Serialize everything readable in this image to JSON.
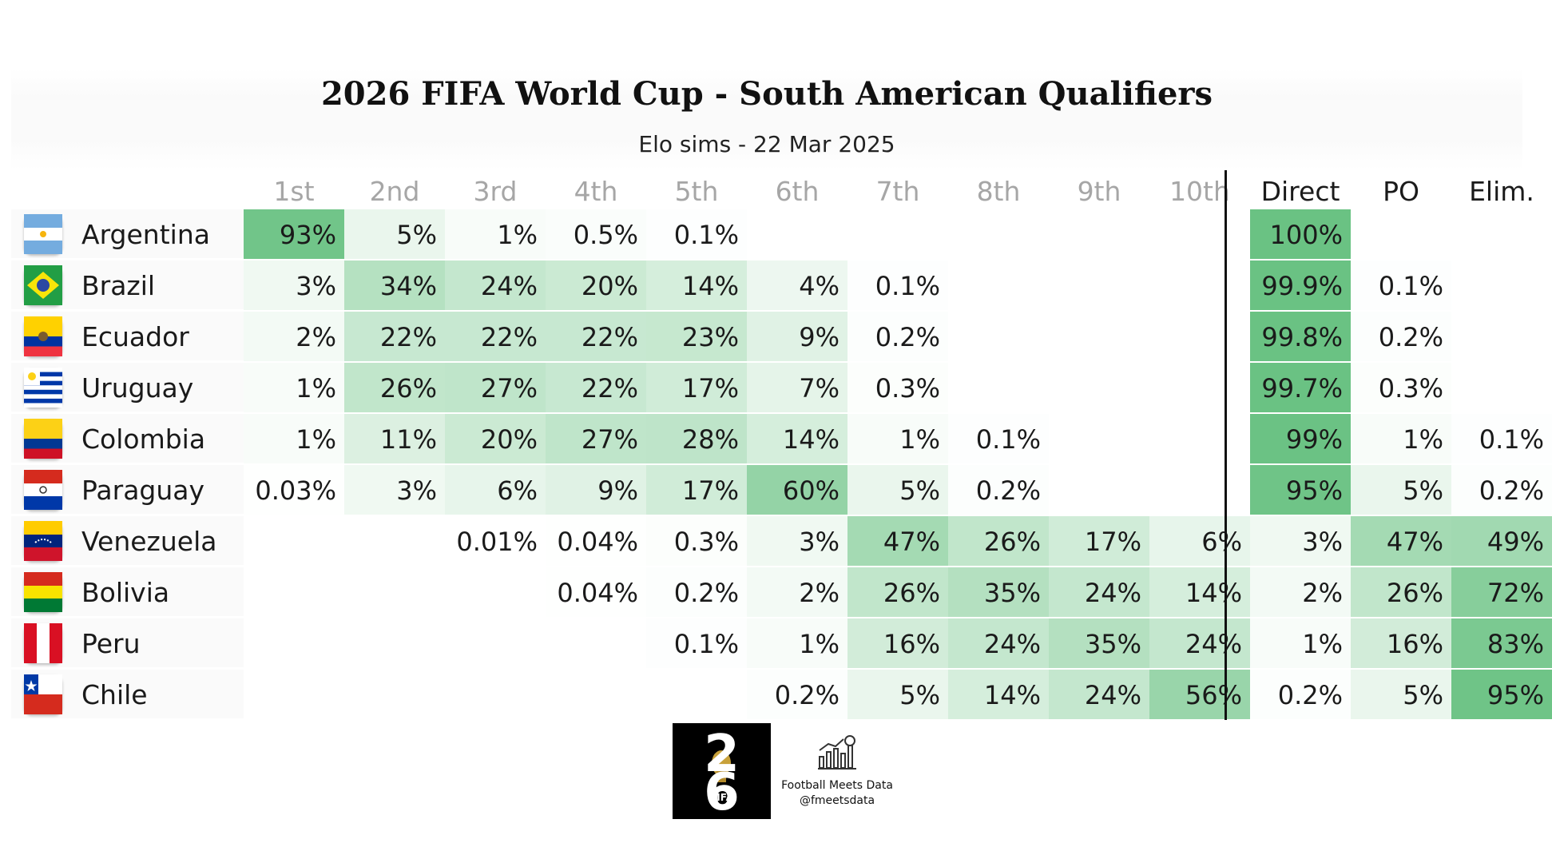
{
  "chart_data": {
    "type": "table",
    "title": "2026 FIFA World Cup - South American Qualifiers",
    "subtitle": "Elo sims - 22 Mar 2025",
    "rank_columns": [
      "1st",
      "2nd",
      "3rd",
      "4th",
      "5th",
      "6th",
      "7th",
      "8th",
      "9th",
      "10th"
    ],
    "outcome_columns": [
      "Direct",
      "PO",
      "Elim."
    ],
    "rows": [
      {
        "team": "Argentina",
        "flag": "argentina-flag-icon",
        "ranks": [
          93,
          5,
          1,
          0.5,
          0.1,
          null,
          null,
          null,
          null,
          null
        ],
        "outcomes": [
          100,
          null,
          null
        ]
      },
      {
        "team": "Brazil",
        "flag": "brazil-flag-icon",
        "ranks": [
          3,
          34,
          24,
          20,
          14,
          4,
          0.1,
          null,
          null,
          null
        ],
        "outcomes": [
          99.9,
          0.1,
          null
        ]
      },
      {
        "team": "Ecuador",
        "flag": "ecuador-flag-icon",
        "ranks": [
          2,
          22,
          22,
          22,
          23,
          9,
          0.2,
          null,
          null,
          null
        ],
        "outcomes": [
          99.8,
          0.2,
          null
        ]
      },
      {
        "team": "Uruguay",
        "flag": "uruguay-flag-icon",
        "ranks": [
          1,
          26,
          27,
          22,
          17,
          7,
          0.3,
          null,
          null,
          null
        ],
        "outcomes": [
          99.7,
          0.3,
          null
        ]
      },
      {
        "team": "Colombia",
        "flag": "colombia-flag-icon",
        "ranks": [
          1,
          11,
          20,
          27,
          28,
          14,
          1,
          0.1,
          null,
          null
        ],
        "outcomes": [
          99,
          1,
          0.1
        ]
      },
      {
        "team": "Paraguay",
        "flag": "paraguay-flag-icon",
        "ranks": [
          0.03,
          3,
          6,
          9,
          17,
          60,
          5,
          0.2,
          null,
          null
        ],
        "outcomes": [
          95,
          5,
          0.2
        ]
      },
      {
        "team": "Venezuela",
        "flag": "venezuela-flag-icon",
        "ranks": [
          null,
          null,
          0.01,
          0.04,
          0.3,
          3,
          47,
          26,
          17,
          6
        ],
        "outcomes": [
          3,
          47,
          49
        ]
      },
      {
        "team": "Bolivia",
        "flag": "bolivia-flag-icon",
        "ranks": [
          null,
          null,
          null,
          0.04,
          0.2,
          2,
          26,
          35,
          24,
          14
        ],
        "outcomes": [
          2,
          26,
          72
        ]
      },
      {
        "team": "Peru",
        "flag": "peru-flag-icon",
        "ranks": [
          null,
          null,
          null,
          null,
          0.1,
          1,
          16,
          24,
          35,
          24
        ],
        "outcomes": [
          1,
          16,
          83
        ]
      },
      {
        "team": "Chile",
        "flag": "chile-flag-icon",
        "ranks": [
          null,
          null,
          null,
          null,
          null,
          0.2,
          5,
          14,
          24,
          56
        ],
        "outcomes": [
          0.2,
          5,
          95
        ]
      }
    ],
    "value_unit": "%",
    "color_scale": {
      "low": "#ffffff",
      "high": "#6ac283"
    }
  },
  "footer": {
    "fifa_logo": {
      "digit_top": "2",
      "digit_bottom": "6",
      "label": "FIFA",
      "icon": "fifa-2026-logo-icon"
    },
    "brand_name": "Football Meets Data",
    "brand_handle": "@fmeetsdata",
    "brand_icon": "bar-chart-football-icon"
  }
}
